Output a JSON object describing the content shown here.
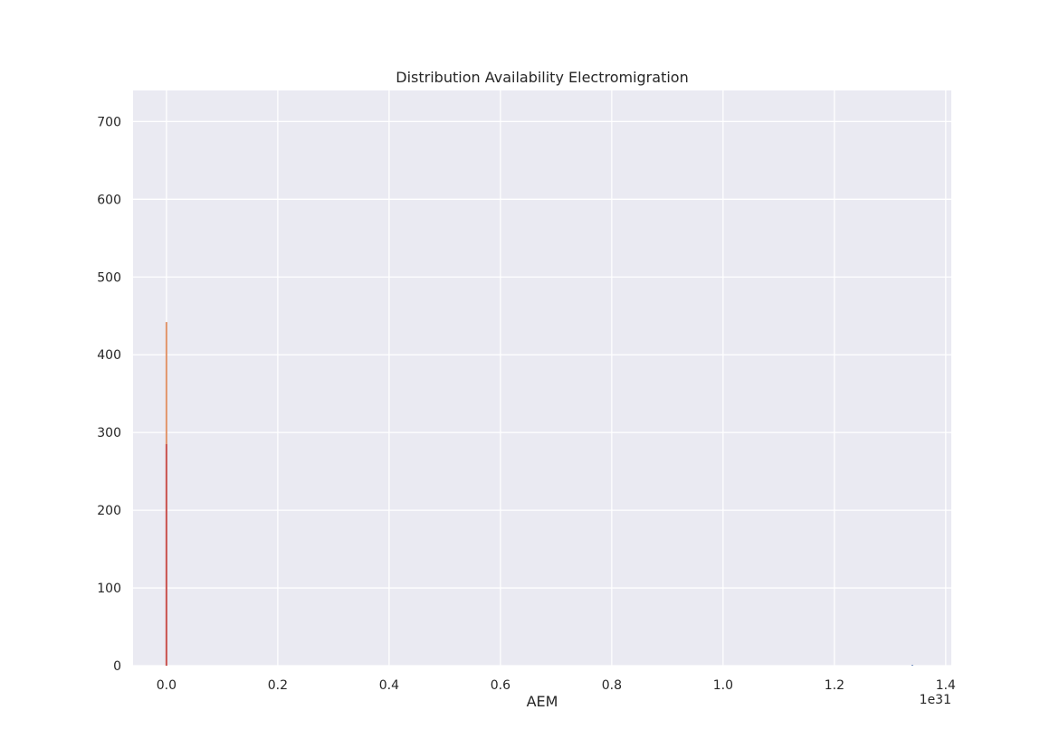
{
  "chart_data": {
    "type": "bar",
    "title": "Distribution Availability Electromigration",
    "xlabel": "AEM",
    "ylabel": "",
    "x_offset_label": "1e31",
    "xlim": [
      -0.06,
      1.41
    ],
    "ylim": [
      0,
      740
    ],
    "x_ticks": [
      0.0,
      0.2,
      0.4,
      0.6,
      0.8,
      1.0,
      1.2,
      1.4
    ],
    "x_tick_labels": [
      "0.0",
      "0.2",
      "0.4",
      "0.6",
      "0.8",
      "1.0",
      "1.2",
      "1.4"
    ],
    "y_ticks": [
      0,
      100,
      200,
      300,
      400,
      500,
      600,
      700
    ],
    "y_tick_labels": [
      "0",
      "100",
      "200",
      "300",
      "400",
      "500",
      "600",
      "700"
    ],
    "grid": true,
    "background": "#eaeaf2",
    "grid_color": "#ffffff",
    "series": [
      {
        "color": "#dd8452",
        "bins": [
          {
            "x": 0.0,
            "count": 442
          }
        ]
      },
      {
        "color": "#c44e52",
        "bins": [
          {
            "x": 0.0,
            "count": 285
          }
        ]
      },
      {
        "color": "#4c72b0",
        "bins": [
          {
            "x": 1.34,
            "count": 1
          }
        ]
      }
    ]
  }
}
